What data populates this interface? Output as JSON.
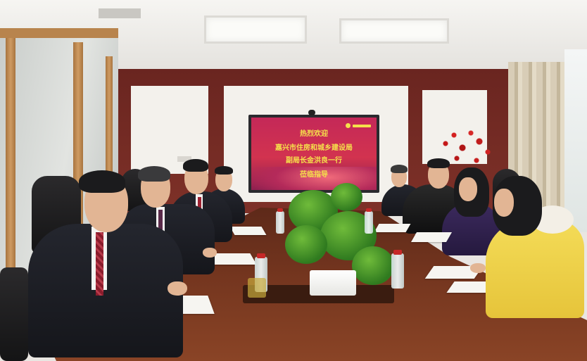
{
  "screen": {
    "lines": [
      "热烈欢迎",
      "嘉兴市住房和城乡建设局",
      "副局长金洪良一行",
      "莅临指导"
    ]
  },
  "colors": {
    "screen_red": "#c42858",
    "screen_text_yellow": "#f5e14b",
    "wall_wood": "#6a2520",
    "table_wood": "#75361f",
    "coat_yellow": "#f1d54a"
  },
  "icons": [
    "tv-logo-icon"
  ]
}
